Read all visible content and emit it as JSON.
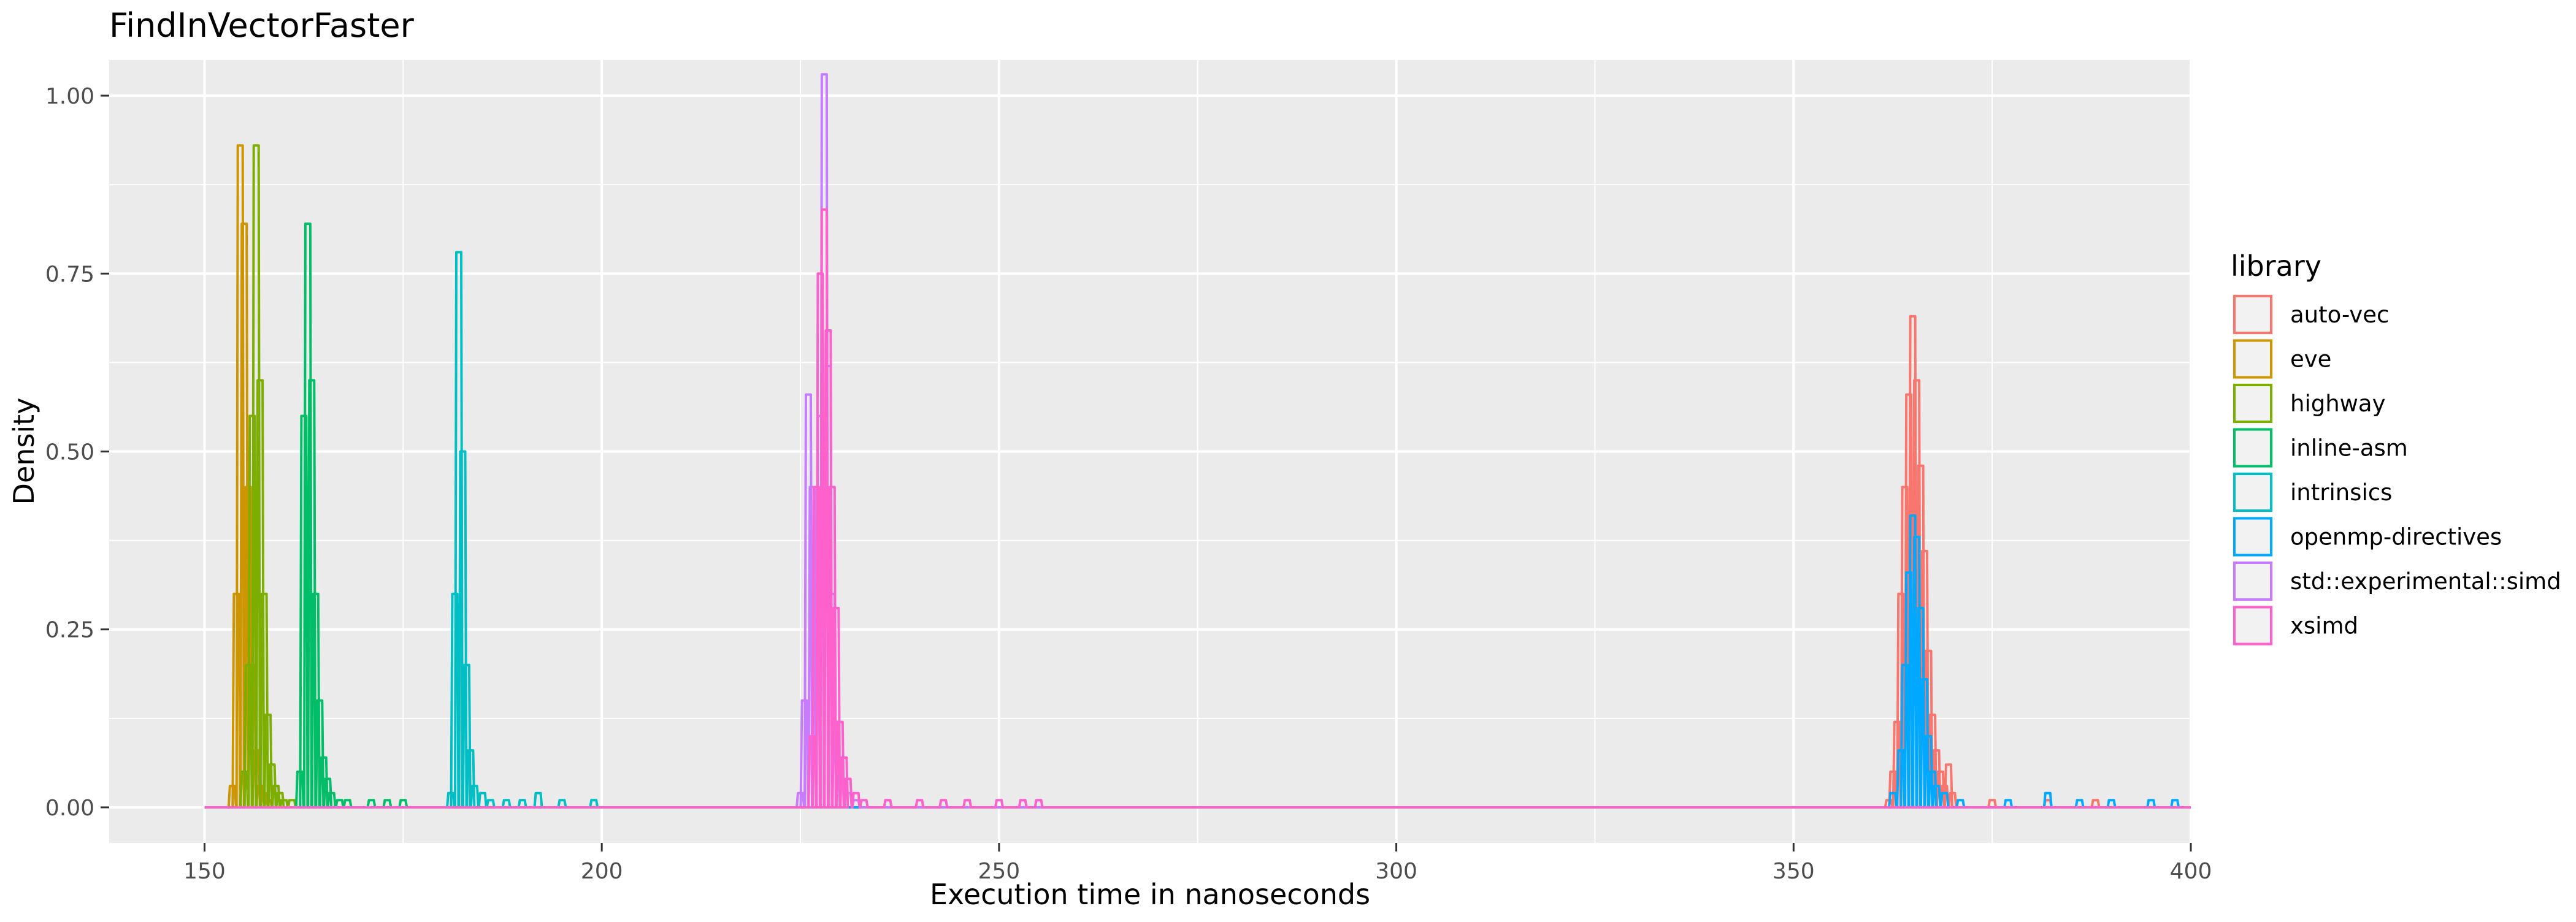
{
  "chart_data": {
    "type": "area",
    "title": "FindInVectorFaster",
    "xlabel": "Execution time in nanoseconds",
    "ylabel": "Density",
    "xlim": [
      138,
      400
    ],
    "ylim": [
      -0.05,
      1.05
    ],
    "x_ticks": [
      150,
      200,
      250,
      300,
      350,
      400
    ],
    "y_ticks": [
      0.0,
      0.25,
      0.5,
      0.75,
      1.0
    ],
    "y_tick_labels": [
      "0.00",
      "0.25",
      "0.50",
      "0.75",
      "1.00"
    ],
    "grid": true,
    "legend_position": "right",
    "legend_title": "library",
    "series": [
      {
        "name": "auto-vec",
        "color": "#F8766D",
        "points": [
          [
            362.0,
            0.01
          ],
          [
            362.5,
            0.05
          ],
          [
            363.0,
            0.12
          ],
          [
            363.5,
            0.3
          ],
          [
            364.0,
            0.45
          ],
          [
            364.5,
            0.58
          ],
          [
            365.0,
            0.69
          ],
          [
            365.5,
            0.6
          ],
          [
            366.0,
            0.48
          ],
          [
            366.5,
            0.36
          ],
          [
            367.0,
            0.22
          ],
          [
            367.5,
            0.13
          ],
          [
            368.0,
            0.08
          ],
          [
            368.5,
            0.05
          ],
          [
            369.0,
            0.03
          ],
          [
            369.5,
            0.06
          ],
          [
            370.0,
            0.02
          ],
          [
            375.0,
            0.01
          ],
          [
            382.0,
            0.01
          ],
          [
            388.0,
            0.01
          ]
        ]
      },
      {
        "name": "eve",
        "color": "#CD9600",
        "points": [
          [
            153.5,
            0.03
          ],
          [
            154.0,
            0.3
          ],
          [
            154.5,
            0.93
          ],
          [
            155.0,
            0.82
          ],
          [
            155.5,
            0.45
          ],
          [
            156.0,
            0.2
          ],
          [
            156.5,
            0.08
          ],
          [
            157.0,
            0.03
          ],
          [
            157.5,
            0.02
          ],
          [
            158.0,
            0.01
          ]
        ]
      },
      {
        "name": "highway",
        "color": "#7CAE00",
        "points": [
          [
            155.0,
            0.05
          ],
          [
            155.5,
            0.2
          ],
          [
            156.0,
            0.55
          ],
          [
            156.5,
            0.93
          ],
          [
            157.0,
            0.6
          ],
          [
            157.5,
            0.3
          ],
          [
            158.0,
            0.13
          ],
          [
            158.5,
            0.06
          ],
          [
            159.0,
            0.03
          ],
          [
            159.5,
            0.02
          ],
          [
            160.0,
            0.01
          ],
          [
            161.0,
            0.01
          ]
        ]
      },
      {
        "name": "inline-asm",
        "color": "#00BE67",
        "points": [
          [
            162.0,
            0.05
          ],
          [
            162.5,
            0.55
          ],
          [
            163.0,
            0.82
          ],
          [
            163.5,
            0.6
          ],
          [
            164.0,
            0.3
          ],
          [
            164.5,
            0.15
          ],
          [
            165.0,
            0.07
          ],
          [
            165.5,
            0.04
          ],
          [
            166.0,
            0.02
          ],
          [
            167.0,
            0.01
          ],
          [
            168.0,
            0.01
          ],
          [
            171.0,
            0.01
          ],
          [
            173.0,
            0.01
          ],
          [
            175.0,
            0.01
          ]
        ]
      },
      {
        "name": "intrinsics",
        "color": "#00BFC4",
        "points": [
          [
            181.0,
            0.02
          ],
          [
            181.5,
            0.3
          ],
          [
            182.0,
            0.78
          ],
          [
            182.5,
            0.5
          ],
          [
            183.0,
            0.2
          ],
          [
            183.5,
            0.08
          ],
          [
            184.0,
            0.03
          ],
          [
            185.0,
            0.02
          ],
          [
            186.0,
            0.01
          ],
          [
            188.0,
            0.01
          ],
          [
            190.0,
            0.01
          ],
          [
            192.0,
            0.02
          ],
          [
            195.0,
            0.01
          ],
          [
            199.0,
            0.01
          ]
        ]
      },
      {
        "name": "openmp-directives",
        "color": "#00A9FF",
        "points": [
          [
            362.5,
            0.02
          ],
          [
            363.5,
            0.08
          ],
          [
            364.0,
            0.2
          ],
          [
            364.5,
            0.33
          ],
          [
            365.0,
            0.41
          ],
          [
            365.5,
            0.38
          ],
          [
            366.0,
            0.28
          ],
          [
            366.5,
            0.18
          ],
          [
            367.0,
            0.1
          ],
          [
            367.5,
            0.05
          ],
          [
            368.0,
            0.03
          ],
          [
            369.0,
            0.02
          ],
          [
            371.0,
            0.01
          ],
          [
            377.0,
            0.01
          ],
          [
            382.0,
            0.02
          ],
          [
            386.0,
            0.01
          ],
          [
            390.0,
            0.01
          ],
          [
            395.0,
            0.01
          ],
          [
            398.0,
            0.01
          ]
        ]
      },
      {
        "name": "std::experimental::simd",
        "color": "#C77CFF",
        "points": [
          [
            225.0,
            0.02
          ],
          [
            225.5,
            0.15
          ],
          [
            226.0,
            0.58
          ],
          [
            226.5,
            0.45
          ],
          [
            227.0,
            0.25
          ],
          [
            227.5,
            0.55
          ],
          [
            228.0,
            1.03
          ],
          [
            228.5,
            0.62
          ],
          [
            229.0,
            0.3
          ],
          [
            229.5,
            0.12
          ],
          [
            230.0,
            0.05
          ],
          [
            231.0,
            0.02
          ],
          [
            232.0,
            0.01
          ]
        ]
      },
      {
        "name": "xsimd",
        "color": "#FF61CC",
        "points": [
          [
            226.5,
            0.1
          ],
          [
            227.0,
            0.45
          ],
          [
            227.5,
            0.75
          ],
          [
            228.0,
            0.84
          ],
          [
            228.5,
            0.67
          ],
          [
            229.0,
            0.45
          ],
          [
            229.5,
            0.28
          ],
          [
            230.0,
            0.12
          ],
          [
            230.5,
            0.07
          ],
          [
            231.0,
            0.04
          ],
          [
            232.0,
            0.02
          ],
          [
            233.0,
            0.01
          ],
          [
            236.0,
            0.01
          ],
          [
            240.0,
            0.01
          ],
          [
            243.0,
            0.01
          ],
          [
            246.0,
            0.01
          ],
          [
            250.0,
            0.01
          ],
          [
            253.0,
            0.01
          ],
          [
            255.0,
            0.01
          ]
        ]
      }
    ]
  }
}
